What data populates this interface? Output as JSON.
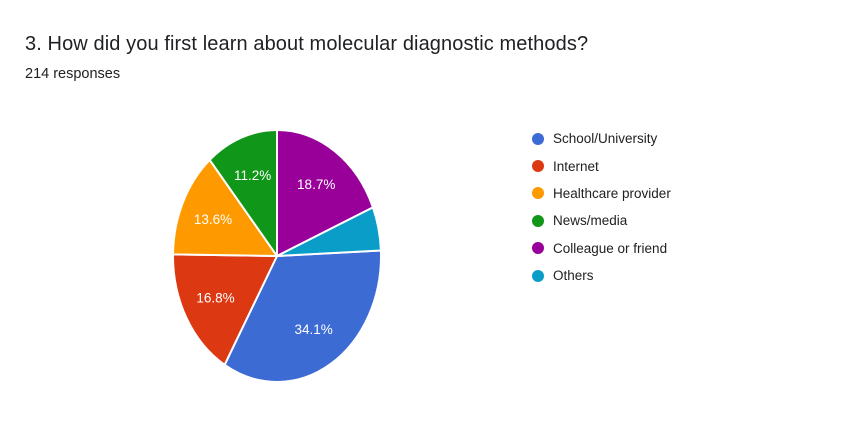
{
  "chart_data": {
    "type": "pie",
    "title": "3. How did you first learn about molecular diagnostic methods?",
    "subtitle": "214 responses",
    "legend_position": "right",
    "background_color": "#ffffff",
    "title_color": "#202124",
    "label_color": "#ffffff",
    "slices": [
      {
        "label": "School/University",
        "pct": 34.1,
        "display": "34.1%",
        "color": "#3c6bd4"
      },
      {
        "label": "Internet",
        "pct": 16.8,
        "display": "16.8%",
        "color": "#dc3912"
      },
      {
        "label": "Healthcare provider",
        "pct": 13.6,
        "display": "13.6%",
        "color": "#ff9900"
      },
      {
        "label": "News/media",
        "pct": 11.2,
        "display": "11.2%",
        "color": "#109618"
      },
      {
        "label": "Colleague or friend",
        "pct": 18.7,
        "display": "18.7%",
        "color": "#990099"
      },
      {
        "label": "Others",
        "pct": 5.6,
        "display": "",
        "color": "#0a9dc8"
      }
    ]
  }
}
